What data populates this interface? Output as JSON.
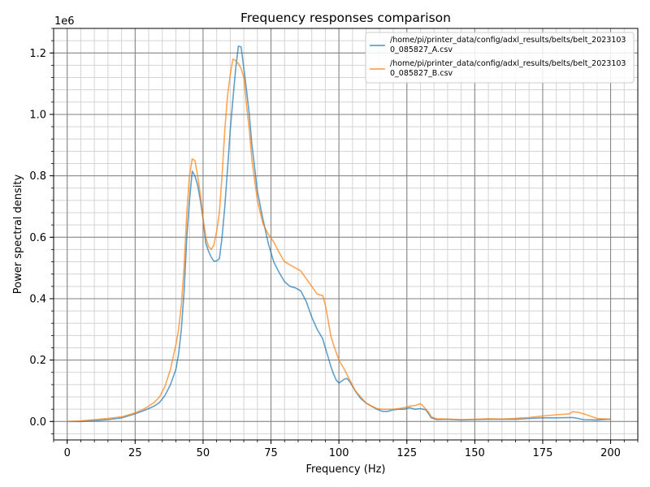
{
  "chart_data": {
    "type": "line",
    "title": "Frequency responses comparison",
    "xlabel": "Frequency (Hz)",
    "ylabel": "Power spectral density",
    "y_offset_label": "1e6",
    "xlim": [
      -5,
      210
    ],
    "ylim": [
      -0.06,
      1.28
    ],
    "xticks": [
      0,
      25,
      50,
      75,
      100,
      125,
      150,
      175,
      200
    ],
    "xtick_labels": [
      "0",
      "25",
      "50",
      "75",
      "100",
      "125",
      "150",
      "175",
      "200"
    ],
    "yticks": [
      0.0,
      0.2,
      0.4,
      0.6,
      0.8,
      1.0,
      1.2
    ],
    "ytick_labels": [
      "0.0",
      "0.2",
      "0.4",
      "0.6",
      "0.8",
      "1.0",
      "1.2"
    ],
    "x_minor_step": 5,
    "y_minor_step": 0.04,
    "grid": true,
    "legend_position": "top-right",
    "series": [
      {
        "name_lines": [
          "/home/pi/printer_data/config/adxl_results/belts/belt_2023103",
          "0_085827_A.csv"
        ],
        "color": "#1f77b4",
        "x": [
          0,
          5,
          10,
          15,
          20,
          25,
          28,
          30,
          32,
          34,
          36,
          38,
          40,
          41,
          42,
          43,
          44,
          45,
          46,
          47,
          48,
          49,
          50,
          51,
          52,
          53,
          54,
          55,
          56,
          57,
          58,
          59,
          60,
          61,
          62,
          63,
          64,
          65,
          66,
          67,
          68,
          70,
          72,
          74,
          76,
          78,
          80,
          82,
          84,
          86,
          88,
          90,
          92,
          94,
          95,
          96,
          97,
          98,
          99,
          100,
          102,
          103,
          104,
          106,
          108,
          110,
          112,
          114,
          116,
          118,
          120,
          122,
          124,
          126,
          128,
          130,
          131,
          132,
          133,
          134,
          136,
          140,
          145,
          150,
          155,
          160,
          165,
          170,
          175,
          180,
          185,
          186,
          188,
          190,
          195,
          200
        ],
        "values": [
          0.0,
          0.0,
          0.003,
          0.006,
          0.012,
          0.025,
          0.035,
          0.042,
          0.05,
          0.062,
          0.085,
          0.12,
          0.17,
          0.22,
          0.3,
          0.42,
          0.6,
          0.72,
          0.815,
          0.8,
          0.77,
          0.72,
          0.66,
          0.58,
          0.555,
          0.535,
          0.522,
          0.523,
          0.53,
          0.6,
          0.7,
          0.82,
          0.95,
          1.05,
          1.15,
          1.222,
          1.22,
          1.15,
          1.08,
          1.0,
          0.9,
          0.75,
          0.66,
          0.58,
          0.52,
          0.485,
          0.455,
          0.44,
          0.435,
          0.425,
          0.39,
          0.34,
          0.3,
          0.27,
          0.24,
          0.21,
          0.18,
          0.155,
          0.135,
          0.125,
          0.138,
          0.14,
          0.13,
          0.1,
          0.075,
          0.06,
          0.05,
          0.04,
          0.033,
          0.033,
          0.038,
          0.04,
          0.04,
          0.045,
          0.04,
          0.042,
          0.04,
          0.038,
          0.025,
          0.012,
          0.006,
          0.007,
          0.005,
          0.006,
          0.007,
          0.007,
          0.007,
          0.01,
          0.012,
          0.012,
          0.013,
          0.013,
          0.01,
          0.006,
          0.005,
          0.008
        ]
      },
      {
        "name_lines": [
          "/home/pi/printer_data/config/adxl_results/belts/belt_2023103",
          "0_085827_B.csv"
        ],
        "color": "#ff7f0e",
        "x": [
          0,
          5,
          10,
          15,
          20,
          25,
          28,
          30,
          32,
          34,
          36,
          38,
          40,
          41,
          42,
          43,
          44,
          45,
          46,
          47,
          48,
          49,
          50,
          51,
          52,
          53,
          54,
          55,
          56,
          57,
          58,
          59,
          60,
          61,
          62,
          63,
          64,
          65,
          66,
          67,
          68,
          70,
          72,
          74,
          76,
          78,
          80,
          82,
          84,
          86,
          88,
          90,
          92,
          94,
          95,
          96,
          97,
          98,
          99,
          100,
          102,
          104,
          106,
          108,
          110,
          112,
          114,
          116,
          118,
          120,
          122,
          124,
          126,
          128,
          130,
          131,
          132,
          133,
          134,
          136,
          140,
          145,
          150,
          155,
          160,
          165,
          170,
          175,
          180,
          185,
          186,
          188,
          190,
          195,
          200
        ],
        "values": [
          0.0,
          0.002,
          0.006,
          0.01,
          0.015,
          0.028,
          0.04,
          0.05,
          0.062,
          0.08,
          0.115,
          0.17,
          0.25,
          0.3,
          0.38,
          0.5,
          0.68,
          0.8,
          0.855,
          0.85,
          0.8,
          0.74,
          0.66,
          0.6,
          0.57,
          0.56,
          0.575,
          0.62,
          0.68,
          0.8,
          0.95,
          1.06,
          1.13,
          1.18,
          1.175,
          1.165,
          1.15,
          1.12,
          1.03,
          0.95,
          0.85,
          0.72,
          0.645,
          0.61,
          0.585,
          0.55,
          0.52,
          0.51,
          0.5,
          0.49,
          0.465,
          0.44,
          0.415,
          0.41,
          0.38,
          0.33,
          0.28,
          0.25,
          0.225,
          0.2,
          0.17,
          0.135,
          0.1,
          0.08,
          0.06,
          0.05,
          0.042,
          0.04,
          0.04,
          0.04,
          0.042,
          0.045,
          0.05,
          0.052,
          0.058,
          0.05,
          0.04,
          0.03,
          0.015,
          0.009,
          0.008,
          0.006,
          0.007,
          0.009,
          0.008,
          0.01,
          0.013,
          0.018,
          0.022,
          0.025,
          0.032,
          0.03,
          0.025,
          0.01,
          0.007
        ]
      }
    ]
  }
}
